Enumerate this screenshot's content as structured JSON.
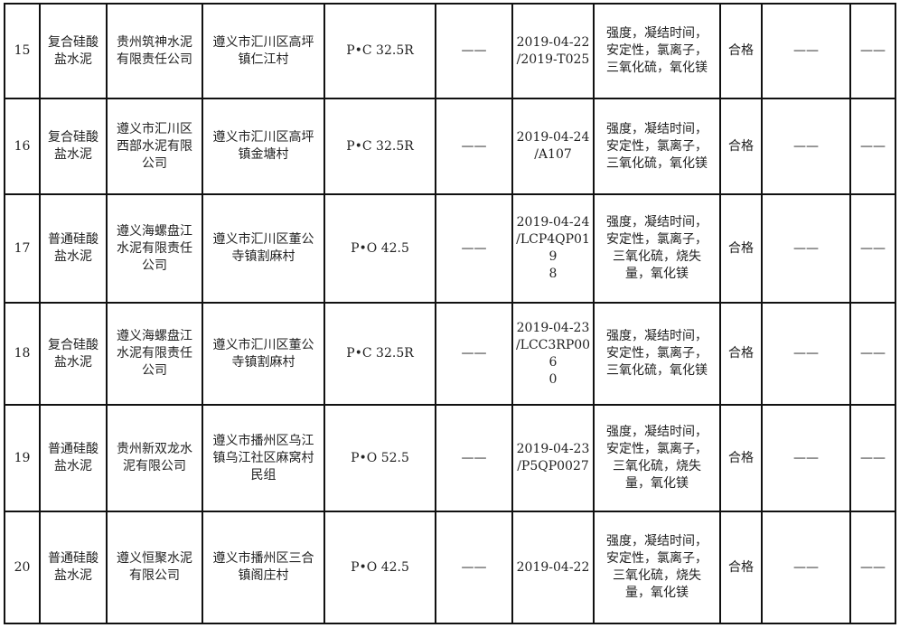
{
  "table": {
    "rows": [
      [
        "15",
        "复合硅酸\n盐水泥",
        "贵州筑神水泥\n有限责任公司",
        "遵义市汇川区高坪\n镇仁江村",
        "P•C 32.5R",
        "——",
        "2019-04-22\n/2019-T025",
        "强度，凝结时间，\n安定性，氯离子，\n三氧化硫，氧化镁",
        "合格",
        "——",
        "——"
      ],
      [
        "16",
        "复合硅酸\n盐水泥",
        "遵义市汇川区\n西部水泥有限\n公司",
        "遵义市汇川区高坪\n镇金塘村",
        "P•C 32.5R",
        "——",
        "2019-04-24\n/A107",
        "强度，凝结时间，\n安定性，氯离子，\n三氧化硫，氧化镁",
        "合格",
        "——",
        "——"
      ],
      [
        "17",
        "普通硅酸\n盐水泥",
        "遵义海螺盘江\n水泥有限责任\n公司",
        "遵义市汇川区董公\n寺镇割麻村",
        "P•O 42.5",
        "——",
        "2019-04-24\n/LCP4QP019\n8",
        "强度，凝结时间，\n安定性，氯离子，\n三氧化硫，烧失\n量，氧化镁",
        "合格",
        "——",
        "——"
      ],
      [
        "18",
        "复合硅酸\n盐水泥",
        "遵义海螺盘江\n水泥有限责任\n公司",
        "遵义市汇川区董公\n寺镇割麻村",
        "P•C 32.5R",
        "——",
        "2019-04-23\n/LCC3RP006\n0",
        "强度，凝结时间，\n安定性，氯离子，\n三氧化硫，氧化镁",
        "合格",
        "——",
        "——"
      ],
      [
        "19",
        "普通硅酸\n盐水泥",
        "贵州新双龙水\n泥有限公司",
        "遵义市播州区乌江\n镇乌江社区麻窝村\n民组",
        "P•O 52.5",
        "——",
        "2019-04-23\n/P5QP0027",
        "强度，凝结时间，\n安定性，氯离子，\n三氧化硫，烧失\n量，氧化镁",
        "合格",
        "——",
        "——"
      ],
      [
        "20",
        "普通硅酸\n盐水泥",
        "遵义恒聚水泥\n有限公司",
        "遵义市播州区三合\n镇阁庄村",
        "P•O 42.5",
        "——",
        "2019-04-22",
        "强度，凝结时间，\n安定性，氯离子，\n三氧化硫，烧失\n量，氧化镁",
        "合格",
        "——",
        "——"
      ]
    ]
  }
}
